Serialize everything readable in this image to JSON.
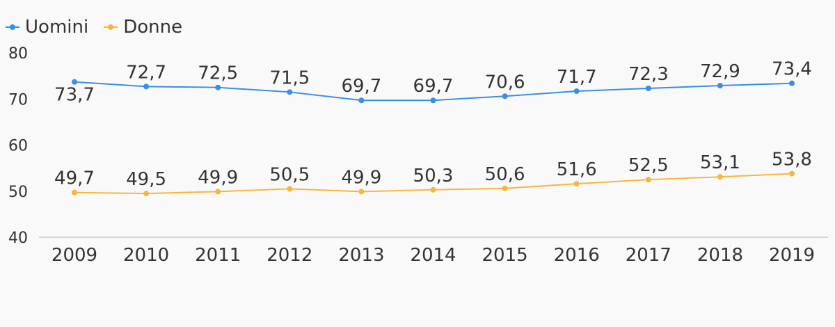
{
  "chart_data": {
    "type": "line",
    "categories": [
      "2009",
      "2010",
      "2011",
      "2012",
      "2013",
      "2014",
      "2015",
      "2016",
      "2017",
      "2018",
      "2019"
    ],
    "ylim": [
      40,
      80
    ],
    "yticks": [
      40,
      50,
      60,
      70,
      80
    ],
    "grid": false,
    "legend_position": "top-left",
    "series": [
      {
        "name": "Uomini",
        "color": "#3a8ee6",
        "values": [
          73.7,
          72.7,
          72.5,
          71.5,
          69.7,
          69.7,
          70.6,
          71.7,
          72.3,
          72.9,
          73.4
        ],
        "labels": [
          "73,7",
          "72,7",
          "72,5",
          "71,5",
          "69,7",
          "69,7",
          "70,6",
          "71,7",
          "72,3",
          "72,9",
          "73,4"
        ]
      },
      {
        "name": "Donne",
        "color": "#f7b73c",
        "values": [
          49.7,
          49.5,
          49.9,
          50.5,
          49.9,
          50.3,
          50.6,
          51.6,
          52.5,
          53.1,
          53.8
        ],
        "labels": [
          "49,7",
          "49,5",
          "49,9",
          "50,5",
          "49,9",
          "50,3",
          "50,6",
          "51,6",
          "52,5",
          "53,1",
          "53,8"
        ]
      }
    ]
  }
}
